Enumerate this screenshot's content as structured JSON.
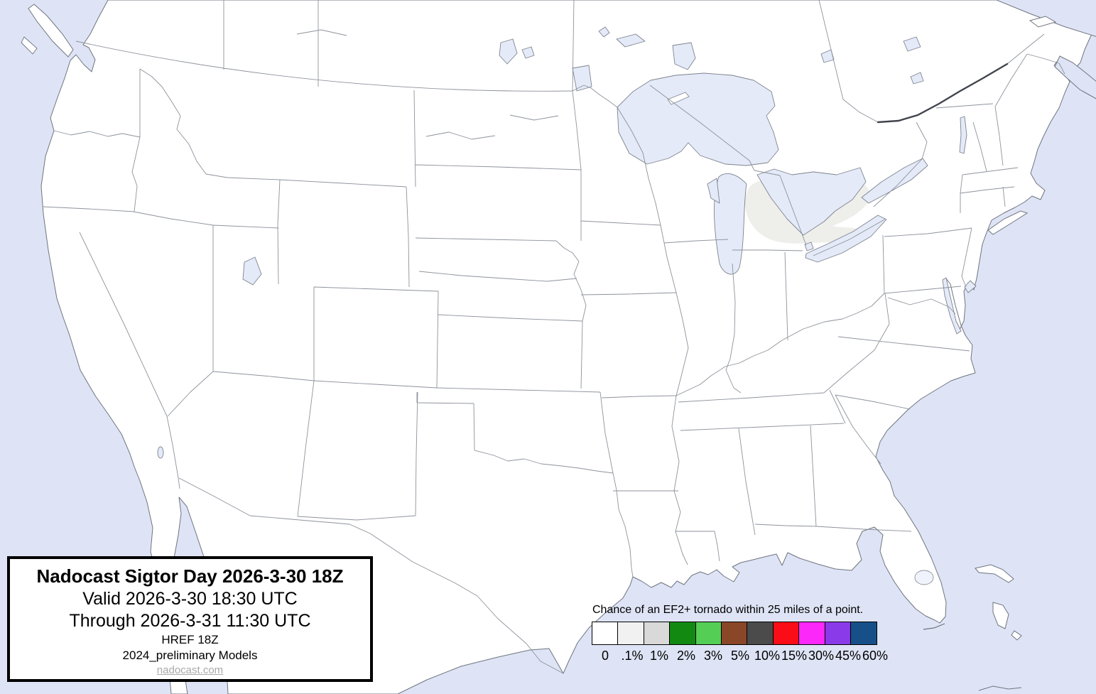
{
  "info_box": {
    "title": "Nadocast Sigtor Day 2026-3-30 18Z",
    "valid_line": "Valid 2026-3-30 18:30 UTC",
    "through_line": "Through 2026-3-31 11:30 UTC",
    "model_line": "HREF 18Z",
    "models_line": "2024_preliminary Models",
    "link": "nadocast.com"
  },
  "legend": {
    "title": "Chance of an EF2+ tornado within 25 miles of a point.",
    "items": [
      {
        "label": "0",
        "color": "#ffffff"
      },
      {
        "label": ".1%",
        "color": "#f1f1f1"
      },
      {
        "label": "1%",
        "color": "#d9d9d9"
      },
      {
        "label": "2%",
        "color": "#128a12"
      },
      {
        "label": "3%",
        "color": "#55ce55"
      },
      {
        "label": "5%",
        "color": "#8a4727"
      },
      {
        "label": "10%",
        "color": "#4b4b4b"
      },
      {
        "label": "15%",
        "color": "#fa0d16"
      },
      {
        "label": "30%",
        "color": "#fc28fa"
      },
      {
        "label": "45%",
        "color": "#8b3ae9"
      },
      {
        "label": "60%",
        "color": "#175089"
      }
    ]
  },
  "map": {
    "colors": {
      "ocean": "#dee4f5",
      "land": "#ffffff",
      "lake": "#e4eaf8",
      "coastline": "#6e747e",
      "state_border": "#8d929b",
      "thick_border": "#40454c",
      "probability_shade": "#eeeeeb"
    },
    "probability_overlay": {
      "level": ".1%"
    },
    "features": [
      "united-states",
      "canada",
      "mexico",
      "great-lakes",
      "pacific-ocean",
      "atlantic-ocean",
      "gulf-of-mexico",
      "gulf-of-california",
      "bahamas"
    ]
  }
}
